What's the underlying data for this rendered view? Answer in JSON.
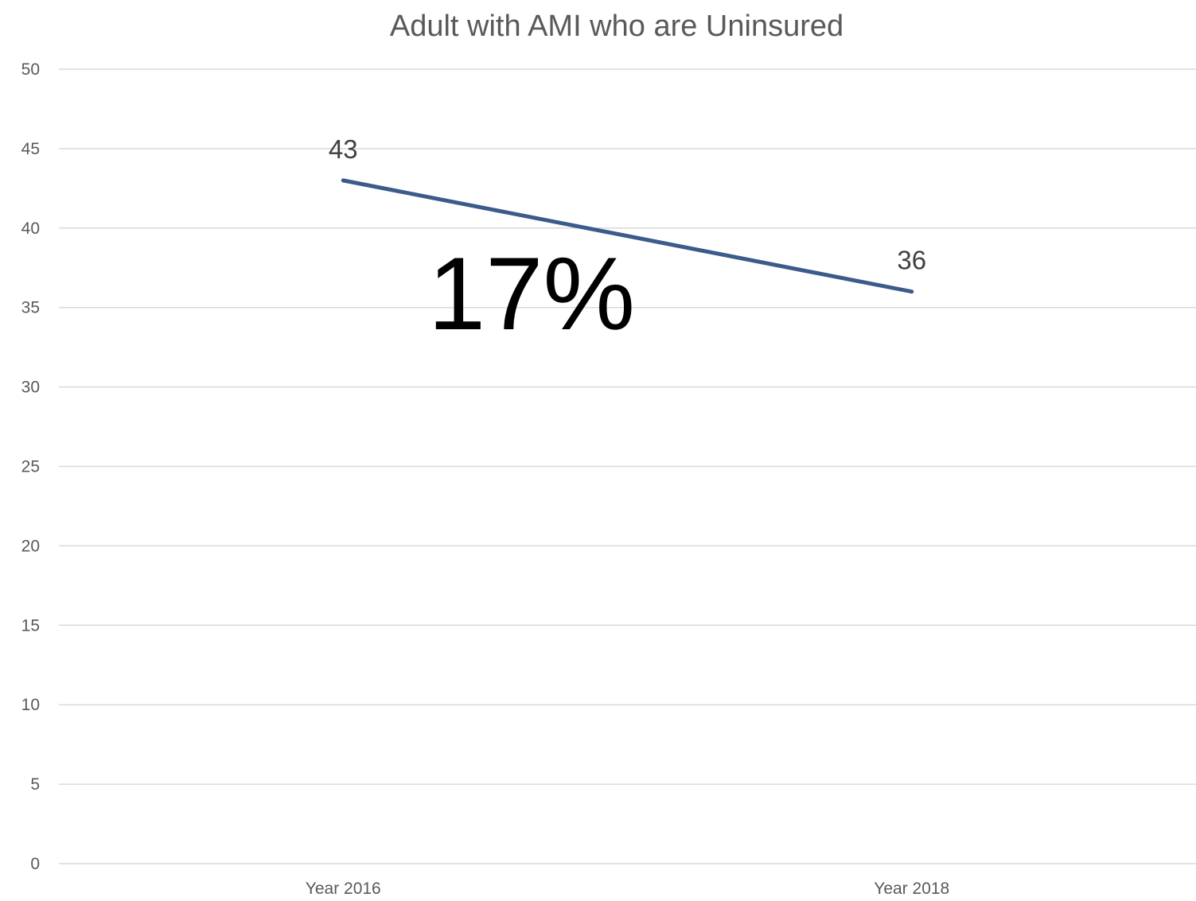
{
  "chart_data": {
    "type": "line",
    "title": "Adult with AMI who are Uninsured",
    "categories": [
      "Year 2016",
      "Year 2018"
    ],
    "series": [
      {
        "values": [
          43,
          36
        ],
        "color": "#3c5a8a"
      }
    ],
    "data_labels": [
      "43",
      "36"
    ],
    "ylim": [
      0,
      50
    ],
    "yticks": [
      0,
      5,
      10,
      15,
      20,
      25,
      30,
      35,
      40,
      45,
      50
    ],
    "grid": true,
    "annotation": "17%"
  }
}
